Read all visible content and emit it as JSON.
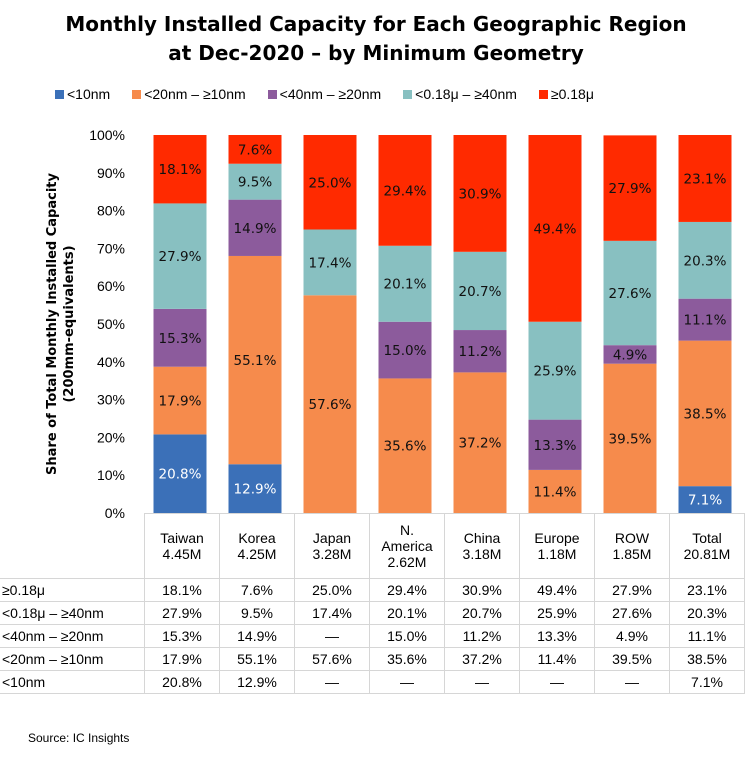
{
  "chart_data": {
    "type": "bar",
    "stacked": true,
    "title": "Monthly Installed Capacity for Each Geographic Region at Dec-2020 – by Minimum Geometry",
    "title_lines": [
      "Monthly Installed Capacity for Each Geographic Region",
      "at Dec-2020 – by Minimum Geometry"
    ],
    "ylabel_lines": [
      "Share of Total Monthly Installed Capacity",
      "(200mm-equivalents)"
    ],
    "ylim": [
      0,
      100
    ],
    "yticks": [
      "0%",
      "10%",
      "20%",
      "30%",
      "40%",
      "50%",
      "60%",
      "70%",
      "80%",
      "90%",
      "100%"
    ],
    "legend_position": "top",
    "categories": [
      "Taiwan",
      "Korea",
      "Japan",
      "N. America",
      "China",
      "Europe",
      "ROW",
      "Total"
    ],
    "category_labels": [
      [
        "Taiwan",
        "4.45M"
      ],
      [
        "Korea",
        "4.25M"
      ],
      [
        "Japan",
        "3.28M"
      ],
      [
        "N.",
        "America",
        "2.62M"
      ],
      [
        "China",
        "3.18M"
      ],
      [
        "Europe",
        "1.18M"
      ],
      [
        "ROW",
        "1.85M"
      ],
      [
        "Total",
        "20.81M"
      ]
    ],
    "series": [
      {
        "name": "<10nm",
        "color": "#3b70b8",
        "values": [
          20.8,
          12.9,
          null,
          null,
          null,
          null,
          null,
          7.1
        ]
      },
      {
        "name": "<20nm – ≥10nm",
        "color": "#f68b4c",
        "values": [
          17.9,
          55.1,
          57.6,
          35.6,
          37.2,
          11.4,
          39.5,
          38.5
        ]
      },
      {
        "name": "<40nm – ≥20nm",
        "color": "#8c5b9c",
        "values": [
          15.3,
          14.9,
          null,
          15.0,
          11.2,
          13.3,
          4.9,
          11.1
        ]
      },
      {
        "name": "<0.18μ – ≥40nm",
        "color": "#88c0c1",
        "values": [
          27.9,
          9.5,
          17.4,
          20.1,
          20.7,
          25.9,
          27.6,
          20.3
        ]
      },
      {
        "name": "≥0.18μ",
        "color": "#ff2a00",
        "values": [
          18.1,
          7.6,
          25.0,
          29.4,
          30.9,
          49.4,
          27.9,
          23.1
        ]
      }
    ],
    "table_rows": [
      {
        "label": "≥0.18μ",
        "cells": [
          "18.1%",
          "7.6%",
          "25.0%",
          "29.4%",
          "30.9%",
          "49.4%",
          "27.9%",
          "23.1%"
        ]
      },
      {
        "label": "<0.18μ – ≥40nm",
        "cells": [
          "27.9%",
          "9.5%",
          "17.4%",
          "20.1%",
          "20.7%",
          "25.9%",
          "27.6%",
          "20.3%"
        ]
      },
      {
        "label": "<40nm – ≥20nm",
        "cells": [
          "15.3%",
          "14.9%",
          "—",
          "15.0%",
          "11.2%",
          "13.3%",
          "4.9%",
          "11.1%"
        ]
      },
      {
        "label": "<20nm – ≥10nm",
        "cells": [
          "17.9%",
          "55.1%",
          "57.6%",
          "35.6%",
          "37.2%",
          "11.4%",
          "39.5%",
          "38.5%"
        ]
      },
      {
        "label": "<10nm",
        "cells": [
          "20.8%",
          "12.9%",
          "—",
          "—",
          "—",
          "—",
          "—",
          "7.1%"
        ]
      }
    ]
  },
  "source": "Source:  IC Insights"
}
